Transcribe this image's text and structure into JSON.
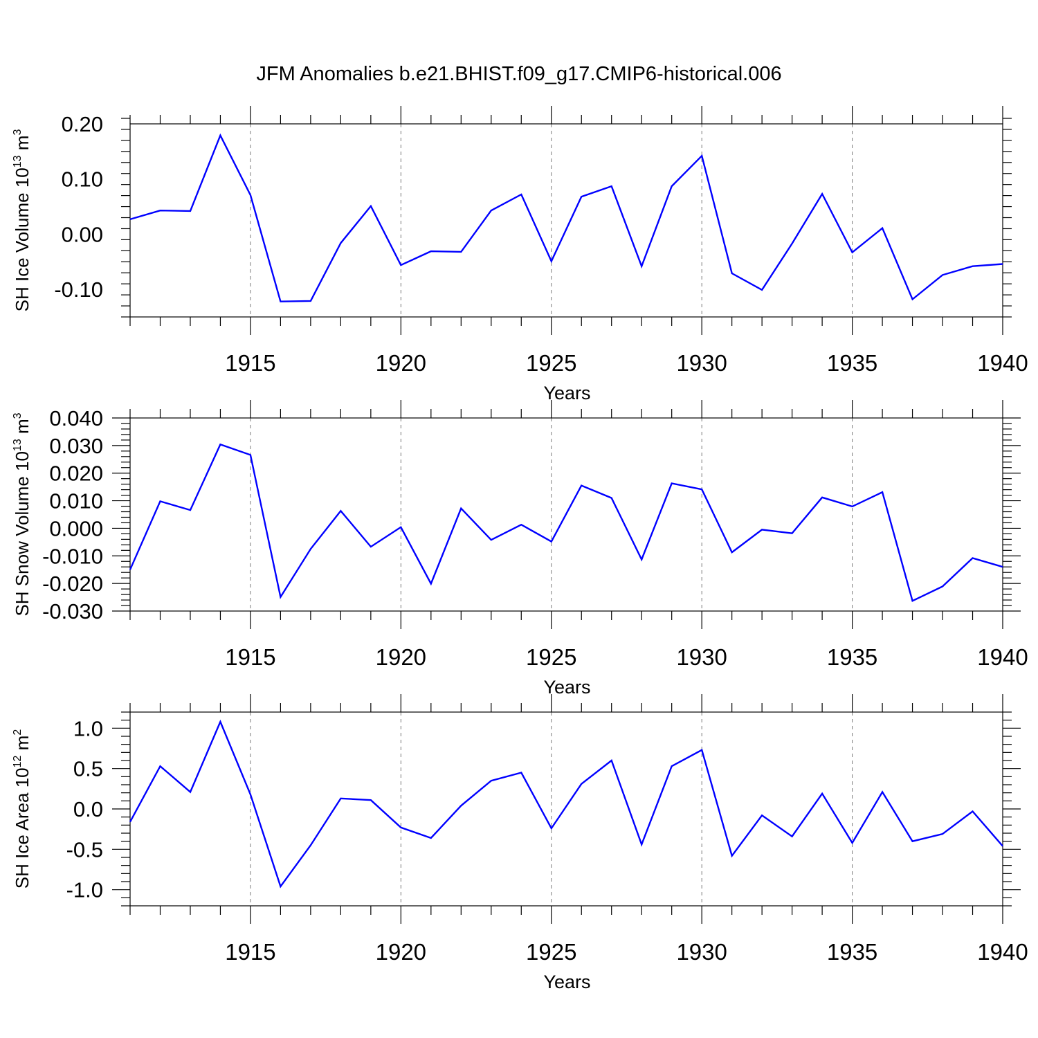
{
  "title": "JFM Anomalies b.e21.BHIST.f09_g17.CMIP6-historical.006",
  "chart_data": [
    {
      "type": "line",
      "name": "ice-volume",
      "ylabel": {
        "text": "SH Ice Volume 10",
        "sup1": "13",
        "unit": " m",
        "sup2": "3"
      },
      "xlabel": "Years",
      "xlim": [
        1911,
        1940
      ],
      "ylim": [
        -0.15,
        0.2
      ],
      "yticks": [
        0.2,
        0.1,
        0.0,
        -0.1
      ],
      "ytick_labels": [
        "0.20",
        "0.10",
        "0.00",
        "-0.10"
      ],
      "yminor_step": 0.02,
      "xticks": [
        1915,
        1920,
        1925,
        1930,
        1935,
        1940
      ],
      "xtick_labels": [
        "1915",
        "1920",
        "1925",
        "1930",
        "1935",
        "1940"
      ],
      "series": [
        {
          "name": "SH Ice Volume",
          "color": "#0000ff",
          "x": [
            1911,
            1912,
            1913,
            1914,
            1915,
            1916,
            1917,
            1918,
            1919,
            1920,
            1921,
            1922,
            1923,
            1924,
            1925,
            1926,
            1927,
            1928,
            1929,
            1930,
            1931,
            1932,
            1933,
            1934,
            1935,
            1936,
            1937,
            1938,
            1939,
            1940
          ],
          "values": [
            0.027,
            0.043,
            0.042,
            0.179,
            0.071,
            -0.122,
            -0.121,
            -0.016,
            0.051,
            -0.056,
            -0.031,
            -0.032,
            0.043,
            0.072,
            -0.049,
            0.068,
            0.087,
            -0.058,
            0.087,
            0.142,
            -0.071,
            -0.101,
            -0.017,
            0.073,
            -0.033,
            0.011,
            -0.118,
            -0.074,
            -0.058,
            -0.054
          ]
        }
      ]
    },
    {
      "type": "line",
      "name": "snow-volume",
      "ylabel": {
        "text": "SH Snow Volume 10",
        "sup1": "13",
        "unit": " m",
        "sup2": "3"
      },
      "xlabel": "Years",
      "xlim": [
        1911,
        1940
      ],
      "ylim": [
        -0.03,
        0.04
      ],
      "yticks": [
        0.04,
        0.03,
        0.02,
        0.01,
        0.0,
        -0.01,
        -0.02,
        -0.03
      ],
      "ytick_labels": [
        "0.040",
        "0.030",
        "0.020",
        "0.010",
        "0.000",
        "-0.010",
        "-0.020",
        "-0.030"
      ],
      "yminor_step": 0.002,
      "xticks": [
        1915,
        1920,
        1925,
        1930,
        1935,
        1940
      ],
      "xtick_labels": [
        "1915",
        "1920",
        "1925",
        "1930",
        "1935",
        "1940"
      ],
      "series": [
        {
          "name": "SH Snow Volume",
          "color": "#0000ff",
          "x": [
            1911,
            1912,
            1913,
            1914,
            1915,
            1916,
            1917,
            1918,
            1919,
            1920,
            1921,
            1922,
            1923,
            1924,
            1925,
            1926,
            1927,
            1928,
            1929,
            1930,
            1931,
            1932,
            1933,
            1934,
            1935,
            1936,
            1937,
            1938,
            1939,
            1940
          ],
          "values": [
            -0.015,
            0.0098,
            0.0066,
            0.0304,
            0.0266,
            -0.0249,
            -0.0075,
            0.0063,
            -0.0067,
            0.0004,
            -0.0201,
            0.0072,
            -0.0042,
            0.0013,
            -0.0048,
            0.0155,
            0.011,
            -0.0113,
            0.0163,
            0.0141,
            -0.0087,
            -0.0005,
            -0.0018,
            0.0112,
            0.0079,
            0.0131,
            -0.0263,
            -0.0211,
            -0.0108,
            -0.014
          ]
        }
      ]
    },
    {
      "type": "line",
      "name": "ice-area",
      "ylabel": {
        "text": "SH Ice Area 10",
        "sup1": "12",
        "unit": " m",
        "sup2": "2"
      },
      "xlabel": "Years",
      "xlim": [
        1911,
        1940
      ],
      "ylim": [
        -1.2,
        1.2
      ],
      "yticks": [
        1.0,
        0.5,
        0.0,
        -0.5,
        -1.0
      ],
      "ytick_labels": [
        "1.0",
        "0.5",
        "0.0",
        "-0.5",
        "-1.0"
      ],
      "yminor_step": 0.1,
      "xticks": [
        1915,
        1920,
        1925,
        1930,
        1935,
        1940
      ],
      "xtick_labels": [
        "1915",
        "1920",
        "1925",
        "1930",
        "1935",
        "1940"
      ],
      "series": [
        {
          "name": "SH Ice Area",
          "color": "#0000ff",
          "x": [
            1911,
            1912,
            1913,
            1914,
            1915,
            1916,
            1917,
            1918,
            1919,
            1920,
            1921,
            1922,
            1923,
            1924,
            1925,
            1926,
            1927,
            1928,
            1929,
            1930,
            1931,
            1932,
            1933,
            1934,
            1935,
            1936,
            1937,
            1938,
            1939,
            1940
          ],
          "values": [
            -0.16,
            0.53,
            0.21,
            1.08,
            0.18,
            -0.96,
            -0.45,
            0.13,
            0.11,
            -0.23,
            -0.36,
            0.04,
            0.35,
            0.45,
            -0.24,
            0.31,
            0.6,
            -0.44,
            0.53,
            0.73,
            -0.58,
            -0.08,
            -0.34,
            0.19,
            -0.42,
            0.21,
            -0.4,
            -0.31,
            -0.03,
            -0.46
          ]
        }
      ]
    }
  ]
}
